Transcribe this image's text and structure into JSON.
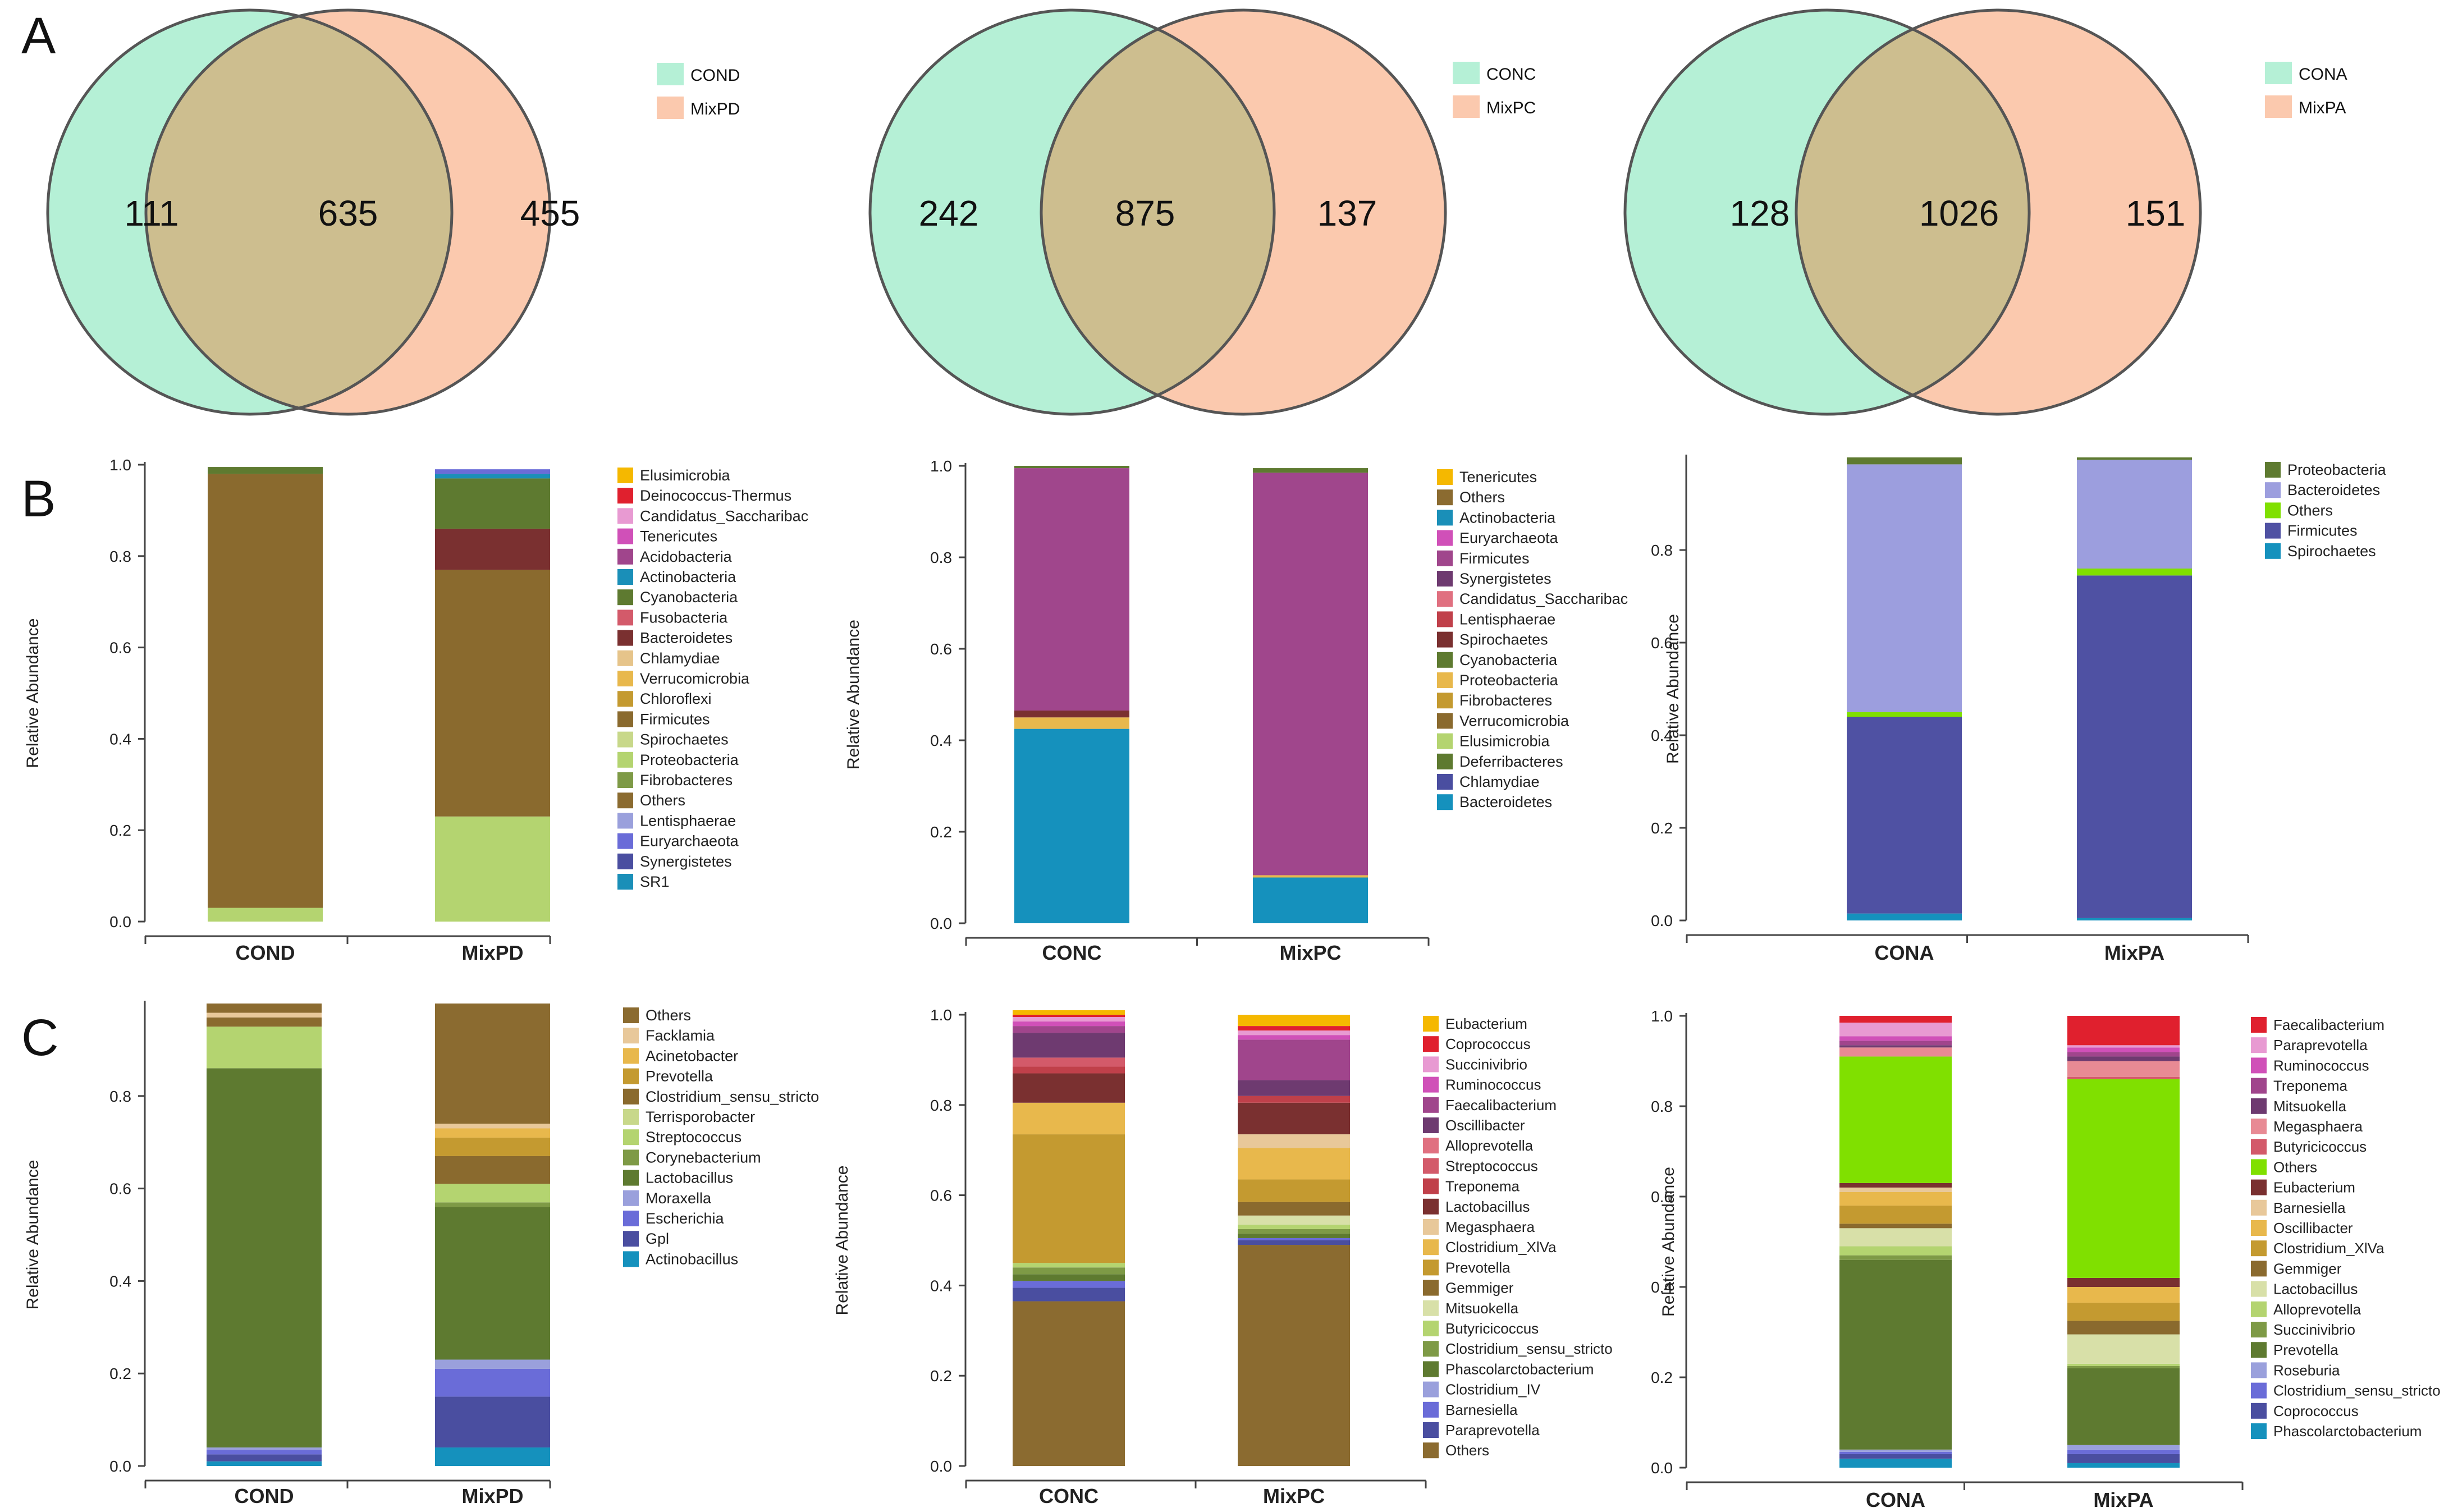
{
  "panel_labels": {
    "A": "A",
    "B": "B",
    "C": "C"
  },
  "colors": {
    "venn_left": "#b5f0d6",
    "venn_right": "#fbc9ae",
    "venn_overlap": "#cdbe8f",
    "venn_stroke": "#555555",
    "axis": "#444444"
  },
  "chart_data": [
    {
      "type": "venn",
      "id": "A1",
      "sets": [
        "COND",
        "MixPD"
      ],
      "values": {
        "left_only": 111,
        "overlap": 635,
        "right_only": 455
      }
    },
    {
      "type": "venn",
      "id": "A2",
      "sets": [
        "CONC",
        "MixPC"
      ],
      "values": {
        "left_only": 242,
        "overlap": 875,
        "right_only": 137
      }
    },
    {
      "type": "venn",
      "id": "A3",
      "sets": [
        "CONA",
        "MixPA"
      ],
      "values": {
        "left_only": 128,
        "overlap": 1026,
        "right_only": 151
      }
    },
    {
      "type": "bar",
      "stacked": true,
      "id": "B1",
      "ylabel": "Relative Abundance",
      "yticks": [
        "0.0",
        "0.2",
        "0.4",
        "0.6",
        "0.8",
        "1.0"
      ],
      "ylim": [
        0,
        1
      ],
      "categories": [
        "COND",
        "MixPD"
      ],
      "legend": [
        "Elusimicrobia",
        "Deinococcus-Thermus",
        "Candidatus_Saccharibac",
        "Tenericutes",
        "Acidobacteria",
        "Actinobacteria",
        "Cyanobacteria",
        "Fusobacteria",
        "Bacteroidetes",
        "Chlamydiae",
        "Verrucomicrobia",
        "Chloroflexi",
        "Firmicutes",
        "Spirochaetes",
        "Proteobacteria",
        "Fibrobacteres",
        "Others",
        "Lentisphaerae",
        "Euryarchaeota",
        "Synergistetes",
        "SR1"
      ],
      "legend_colors": [
        "#f5b800",
        "#e0202e",
        "#e89ad2",
        "#d050b8",
        "#a0458c",
        "#1a8fb8",
        "#5e7a30",
        "#d35a6a",
        "#7a3030",
        "#e6c48a",
        "#e8b84c",
        "#c49a30",
        "#8a6a2e",
        "#c8d88a",
        "#b4d470",
        "#7e9a46",
        "#8b6b30",
        "#9aa0dc",
        "#6a6cd8",
        "#4a4ea0",
        "#1a8fb8"
      ],
      "series": [
        {
          "name": "Proteobacteria",
          "color": "#b4d470",
          "values": [
            0.03,
            0.23
          ]
        },
        {
          "name": "Firmicutes",
          "color": "#8a6a2e",
          "values": [
            0.95,
            0.54
          ]
        },
        {
          "name": "Bacteroidetes",
          "color": "#7a3030",
          "values": [
            0.0,
            0.09
          ]
        },
        {
          "name": "Cyanobacteria",
          "color": "#5e7a30",
          "values": [
            0.015,
            0.11
          ]
        },
        {
          "name": "Actinobacteria",
          "color": "#1a8fb8",
          "values": [
            0.0,
            0.01
          ]
        },
        {
          "name": "Euryarchaeota",
          "color": "#6a6cd8",
          "values": [
            0.0,
            0.01
          ]
        }
      ]
    },
    {
      "type": "bar",
      "stacked": true,
      "id": "B2",
      "ylabel": "Relative Abundance",
      "yticks": [
        "0.0",
        "0.2",
        "0.4",
        "0.6",
        "0.8",
        "1.0"
      ],
      "ylim": [
        0,
        1
      ],
      "categories": [
        "CONC",
        "MixPC"
      ],
      "legend": [
        "Tenericutes",
        "Others",
        "Actinobacteria",
        "Euryarchaeota",
        "Firmicutes",
        "Synergistetes",
        "Candidatus_Saccharibac",
        "Lentisphaerae",
        "Spirochaetes",
        "Cyanobacteria",
        "Proteobacteria",
        "Fibrobacteres",
        "Verrucomicrobia",
        "Elusimicrobia",
        "Deferribacteres",
        "Chlamydiae",
        "Bacteroidetes"
      ],
      "legend_colors": [
        "#f5b800",
        "#8b6b30",
        "#1a8fb8",
        "#d050b8",
        "#a0468c",
        "#6e3a70",
        "#e07080",
        "#c0404a",
        "#7a3030",
        "#5e7a30",
        "#e8b84c",
        "#c49a30",
        "#8a6a2e",
        "#b4d470",
        "#5e7a30",
        "#4a4ea0",
        "#1591bd"
      ],
      "series": [
        {
          "name": "Bacteroidetes",
          "color": "#1591bd",
          "values": [
            0.425,
            0.1
          ]
        },
        {
          "name": "Proteobacteria",
          "color": "#e8b84c",
          "values": [
            0.025,
            0.005
          ]
        },
        {
          "name": "Spirochaetes",
          "color": "#7a3030",
          "values": [
            0.015,
            0.0
          ]
        },
        {
          "name": "Firmicutes",
          "color": "#a0468c",
          "values": [
            0.53,
            0.88
          ]
        },
        {
          "name": "Cyanobacteria",
          "color": "#5e7a30",
          "values": [
            0.005,
            0.01
          ]
        }
      ]
    },
    {
      "type": "bar",
      "stacked": true,
      "id": "B3",
      "ylabel": "Relative Abundance",
      "yticks": [
        "0.0",
        "0.2",
        "0.4",
        "0.6",
        "0.8"
      ],
      "ylim": [
        0,
        1
      ],
      "categories": [
        "CONA",
        "MixPA"
      ],
      "legend": [
        "Proteobacteria",
        "Bacteroidetes",
        "Others",
        "Firmicutes",
        "Spirochaetes"
      ],
      "legend_colors": [
        "#5e7a30",
        "#9c9ede",
        "#80e000",
        "#4f51a3",
        "#1591bd"
      ],
      "series": [
        {
          "name": "Spirochaetes",
          "color": "#1591bd",
          "values": [
            0.015,
            0.005
          ]
        },
        {
          "name": "Firmicutes",
          "color": "#4f51a3",
          "values": [
            0.425,
            0.74
          ]
        },
        {
          "name": "Others",
          "color": "#80e000",
          "values": [
            0.01,
            0.015
          ]
        },
        {
          "name": "Bacteroidetes",
          "color": "#9c9ede",
          "values": [
            0.535,
            0.235
          ]
        },
        {
          "name": "Proteobacteria",
          "color": "#5e7a30",
          "values": [
            0.015,
            0.005
          ]
        }
      ]
    },
    {
      "type": "bar",
      "stacked": true,
      "id": "C1",
      "ylabel": "Relative Abundance",
      "yticks": [
        "0.0",
        "0.2",
        "0.4",
        "0.6",
        "0.8"
      ],
      "ylim": [
        0,
        1
      ],
      "categories": [
        "COND",
        "MixPD"
      ],
      "legend": [
        "Others",
        "Facklamia",
        "Acinetobacter",
        "Prevotella",
        "Clostridium_sensu_stricto",
        "Terrisporobacter",
        "Streptococcus",
        "Corynebacterium",
        "Lactobacillus",
        "Moraxella",
        "Escherichia",
        "Gpl",
        "Actinobacillus"
      ],
      "legend_colors": [
        "#8b6b30",
        "#e8c89a",
        "#e8b84c",
        "#c49a30",
        "#8a6a2e",
        "#c8d88a",
        "#b4d470",
        "#7e9a46",
        "#5e7a30",
        "#9aa0dc",
        "#6a6cd8",
        "#4a4ea0",
        "#1591bd"
      ],
      "series": [
        {
          "name": "Actinobacillus",
          "color": "#1591bd",
          "values": [
            0.01,
            0.04
          ]
        },
        {
          "name": "Gpl",
          "color": "#4a4ea0",
          "values": [
            0.015,
            0.11
          ]
        },
        {
          "name": "Escherichia",
          "color": "#6a6cd8",
          "values": [
            0.01,
            0.06
          ]
        },
        {
          "name": "Moraxella",
          "color": "#9aa0dc",
          "values": [
            0.005,
            0.02
          ]
        },
        {
          "name": "Lactobacillus",
          "color": "#5e7a30",
          "values": [
            0.82,
            0.33
          ]
        },
        {
          "name": "Corynebacterium",
          "color": "#7e9a46",
          "values": [
            0.0,
            0.01
          ]
        },
        {
          "name": "Streptococcus",
          "color": "#b4d470",
          "values": [
            0.09,
            0.04
          ]
        },
        {
          "name": "Clostridium_sensu_stricto",
          "color": "#8a6a2e",
          "values": [
            0.02,
            0.06
          ]
        },
        {
          "name": "Prevotella",
          "color": "#c49a30",
          "values": [
            0.0,
            0.04
          ]
        },
        {
          "name": "Acinetobacter",
          "color": "#e8b84c",
          "values": [
            0.0,
            0.02
          ]
        },
        {
          "name": "Facklamia",
          "color": "#e8c89a",
          "values": [
            0.01,
            0.01
          ]
        },
        {
          "name": "Others",
          "color": "#8b6b30",
          "values": [
            0.02,
            0.26
          ]
        }
      ]
    },
    {
      "type": "bar",
      "stacked": true,
      "id": "C2",
      "ylabel": "Relative Abundance",
      "yticks": [
        "0.0",
        "0.2",
        "0.4",
        "0.6",
        "0.8",
        "1.0"
      ],
      "ylim": [
        0,
        1
      ],
      "categories": [
        "CONC",
        "MixPC"
      ],
      "legend": [
        "Eubacterium",
        "Coprococcus",
        "Succinivibrio",
        "Ruminococcus",
        "Faecalibacterium",
        "Oscillibacter",
        "Alloprevotella",
        "Streptococcus",
        "Treponema",
        "Lactobacillus",
        "Megasphaera",
        "Clostridium_XlVa",
        "Prevotella",
        "Gemmiger",
        "Mitsuokella",
        "Butyricicoccus",
        "Clostridium_sensu_stricto",
        "Phascolarctobacterium",
        "Clostridium_IV",
        "Barnesiella",
        "Paraprevotella",
        "Others"
      ],
      "legend_colors": [
        "#f5b800",
        "#e0202e",
        "#e89ad2",
        "#d050b8",
        "#a0458c",
        "#6e3a70",
        "#e07080",
        "#d35a6a",
        "#c0404a",
        "#7a3030",
        "#e8c89a",
        "#e8b84c",
        "#c49a30",
        "#8a6a2e",
        "#d8e0a8",
        "#b4d470",
        "#7e9a46",
        "#5e7a30",
        "#9aa0dc",
        "#6a6cd8",
        "#4a4ea0",
        "#8b6b30"
      ],
      "series": [
        {
          "name": "Others",
          "color": "#8b6b30",
          "values": [
            0.365,
            0.49
          ]
        },
        {
          "name": "Paraprevotella",
          "color": "#4a4ea0",
          "values": [
            0.03,
            0.01
          ]
        },
        {
          "name": "Barnesiella",
          "color": "#6a6cd8",
          "values": [
            0.015,
            0.005
          ]
        },
        {
          "name": "Phascolarctobacterium",
          "color": "#5e7a30",
          "values": [
            0.015,
            0.01
          ]
        },
        {
          "name": "Clostridium_sensu_stricto",
          "color": "#7e9a46",
          "values": [
            0.015,
            0.01
          ]
        },
        {
          "name": "Butyricicoccus",
          "color": "#b4d470",
          "values": [
            0.01,
            0.01
          ]
        },
        {
          "name": "Mitsuokella",
          "color": "#d8e0a8",
          "values": [
            0.0,
            0.02
          ]
        },
        {
          "name": "Gemmiger",
          "color": "#8a6a2e",
          "values": [
            0.0,
            0.03
          ]
        },
        {
          "name": "Prevotella",
          "color": "#c49a30",
          "values": [
            0.285,
            0.05
          ]
        },
        {
          "name": "Clostridium_XlVa",
          "color": "#e8b84c",
          "values": [
            0.07,
            0.07
          ]
        },
        {
          "name": "Megasphaera",
          "color": "#e8c89a",
          "values": [
            0.0,
            0.03
          ]
        },
        {
          "name": "Lactobacillus",
          "color": "#7a3030",
          "values": [
            0.065,
            0.07
          ]
        },
        {
          "name": "Treponema",
          "color": "#c0404a",
          "values": [
            0.015,
            0.015
          ]
        },
        {
          "name": "Streptococcus",
          "color": "#d35a6a",
          "values": [
            0.02,
            0.0
          ]
        },
        {
          "name": "Oscillibacter",
          "color": "#6e3a70",
          "values": [
            0.055,
            0.035
          ]
        },
        {
          "name": "Faecalibacterium",
          "color": "#a0458c",
          "values": [
            0.015,
            0.09
          ]
        },
        {
          "name": "Ruminococcus",
          "color": "#d050b8",
          "values": [
            0.01,
            0.01
          ]
        },
        {
          "name": "Succinivibrio",
          "color": "#e89ad2",
          "values": [
            0.01,
            0.01
          ]
        },
        {
          "name": "Coprococcus",
          "color": "#e0202e",
          "values": [
            0.005,
            0.01
          ]
        },
        {
          "name": "Eubacterium",
          "color": "#f5b800",
          "values": [
            0.01,
            0.025
          ]
        }
      ]
    },
    {
      "type": "bar",
      "stacked": true,
      "id": "C3",
      "ylabel": "Relative Abundance",
      "yticks": [
        "0.0",
        "0.2",
        "0.4",
        "0.6",
        "0.8",
        "1.0"
      ],
      "ylim": [
        0,
        1
      ],
      "categories": [
        "CONA",
        "MixPA"
      ],
      "legend": [
        "Faecalibacterium",
        "Paraprevotella",
        "Ruminococcus",
        "Treponema",
        "Mitsuokella",
        "Megasphaera",
        "Butyricicoccus",
        "Others",
        "Eubacterium",
        "Barnesiella",
        "Oscillibacter",
        "Clostridium_XlVa",
        "Gemmiger",
        "Lactobacillus",
        "Alloprevotella",
        "Succinivibrio",
        "Prevotella",
        "Roseburia",
        "Clostridium_sensu_stricto",
        "Coprococcus",
        "Phascolarctobacterium"
      ],
      "legend_colors": [
        "#e0202e",
        "#e89ad2",
        "#d050b8",
        "#a0458c",
        "#6e3a70",
        "#e88a94",
        "#d35a6a",
        "#80e000",
        "#7a3030",
        "#e8c89a",
        "#e8b84c",
        "#c49a30",
        "#8a6a2e",
        "#d8e0a8",
        "#b4d470",
        "#7e9a46",
        "#5e7a30",
        "#9aa0dc",
        "#6a6cd8",
        "#4a4ea0",
        "#1591bd"
      ],
      "series": [
        {
          "name": "Phascolarctobacterium",
          "color": "#1591bd",
          "values": [
            0.02,
            0.01
          ]
        },
        {
          "name": "Coprococcus",
          "color": "#4a4ea0",
          "values": [
            0.01,
            0.02
          ]
        },
        {
          "name": "Clostridium_sensu_stricto",
          "color": "#6a6cd8",
          "values": [
            0.005,
            0.01
          ]
        },
        {
          "name": "Roseburia",
          "color": "#9aa0dc",
          "values": [
            0.005,
            0.01
          ]
        },
        {
          "name": "Prevotella",
          "color": "#5e7a30",
          "values": [
            0.42,
            0.17
          ]
        },
        {
          "name": "Succinivibrio",
          "color": "#7e9a46",
          "values": [
            0.01,
            0.005
          ]
        },
        {
          "name": "Alloprevotella",
          "color": "#b4d470",
          "values": [
            0.02,
            0.005
          ]
        },
        {
          "name": "Lactobacillus",
          "color": "#d8e0a8",
          "values": [
            0.04,
            0.065
          ]
        },
        {
          "name": "Gemmiger",
          "color": "#8a6a2e",
          "values": [
            0.01,
            0.03
          ]
        },
        {
          "name": "Clostridium_XlVa",
          "color": "#c49a30",
          "values": [
            0.04,
            0.04
          ]
        },
        {
          "name": "Oscillibacter",
          "color": "#e8b84c",
          "values": [
            0.03,
            0.035
          ]
        },
        {
          "name": "Barnesiella",
          "color": "#e8c89a",
          "values": [
            0.01,
            0.0
          ]
        },
        {
          "name": "Eubacterium",
          "color": "#7a3030",
          "values": [
            0.01,
            0.02
          ]
        },
        {
          "name": "Others",
          "color": "#80e000",
          "values": [
            0.28,
            0.44
          ]
        },
        {
          "name": "Butyricicoccus",
          "color": "#d35a6a",
          "values": [
            0.0,
            0.005
          ]
        },
        {
          "name": "Megasphaera",
          "color": "#e88a94",
          "values": [
            0.02,
            0.035
          ]
        },
        {
          "name": "Mitsuokella",
          "color": "#6e3a70",
          "values": [
            0.005,
            0.01
          ]
        },
        {
          "name": "Treponema",
          "color": "#a0458c",
          "values": [
            0.01,
            0.01
          ]
        },
        {
          "name": "Ruminococcus",
          "color": "#d050b8",
          "values": [
            0.01,
            0.01
          ]
        },
        {
          "name": "Paraprevotella",
          "color": "#e89ad2",
          "values": [
            0.03,
            0.005
          ]
        },
        {
          "name": "Faecalibacterium",
          "color": "#e0202e",
          "values": [
            0.015,
            0.065
          ]
        }
      ]
    }
  ]
}
